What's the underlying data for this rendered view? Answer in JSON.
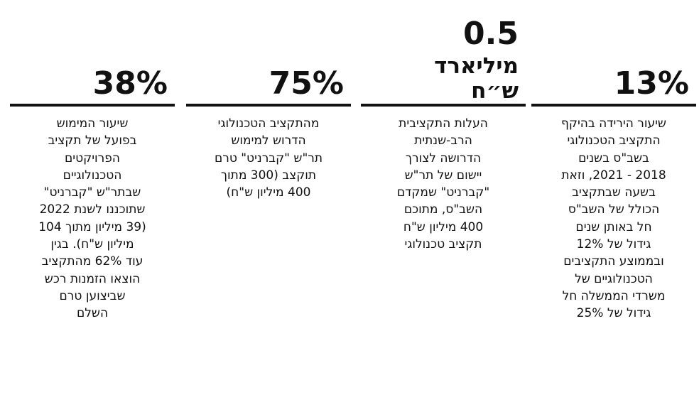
{
  "columns": [
    {
      "headline": [
        "13%"
      ],
      "body": [
        "שיעור הירידה בהיקף",
        "התקציב הטכנולוגי",
        "בשב\"ס בשנים",
        "2018 - 2021, וזאת",
        "בשעה שבתקציב",
        "הכולל של השב\"ס",
        "חל באותן שנים",
        "גידול של 12%",
        "ובממוצע התקציבים",
        "הטכנולוגיים של",
        "משרדי הממשלה חל",
        "גידול של 25%"
      ]
    },
    {
      "headline": [
        "0.5",
        "מיליארד",
        "ש״ח"
      ],
      "body": [
        "העלות התקציבית",
        "הרב-שנתית",
        "הדרושה לצורך",
        "יישום של תר\"ש",
        "\"קברניט\" שמקדם",
        "השב\"ס, מתוכם",
        "400 מיליון ש\"ח",
        "תקציב טכנולוגי"
      ]
    },
    {
      "headline": [
        "75%"
      ],
      "body": [
        "מהתקציב הטכנולוגי",
        "הדרוש למימוש",
        "תר\"ש \"קברניט\" טרם",
        "תוקצב (300 מתוך",
        "400 מיליון ש\"ח)"
      ]
    },
    {
      "headline": [
        "38%"
      ],
      "body": [
        "שיעור המימוש",
        "בפועל של תקציב",
        "הפרויקטים",
        "הטכנולוגיים",
        "שבתר\"ש \"קברניט\"",
        "שתוכננו לשנת 2022",
        "(39 מיליון מתוך 104",
        "מיליון ש\"ח). בגין",
        "עוד 62% מהתקציב",
        "הוצאו הזמנות רכש",
        "שביצוען טרם",
        "השלם"
      ]
    }
  ]
}
